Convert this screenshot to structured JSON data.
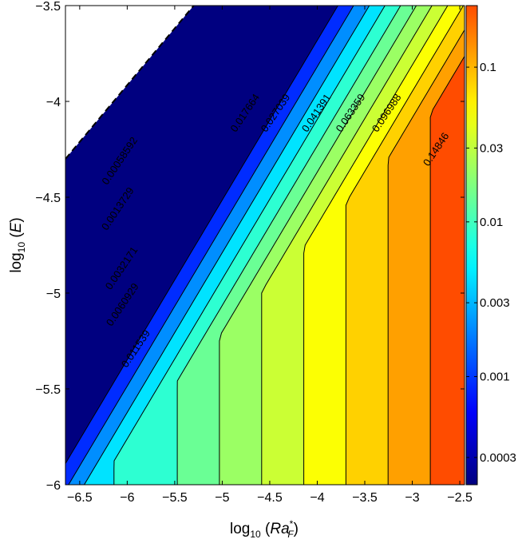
{
  "chart_data": {
    "type": "contour",
    "xlabel_base": "log",
    "xlabel_sub": "10",
    "xlabel_arg": "Ra",
    "xlabel_arg_sup": "*",
    "xlabel_arg_sub": "F",
    "ylabel_base": "log",
    "ylabel_sub": "10",
    "ylabel_arg": "E",
    "xlim": [
      -6.65,
      -2.45
    ],
    "ylim": [
      -6,
      -3.5
    ],
    "x_ticks": [
      -6.5,
      -6,
      -5.5,
      -5,
      -4.5,
      -4,
      -3.5,
      -3,
      -2.5
    ],
    "x_tick_labels": [
      "−6.5",
      "−6",
      "−5.5",
      "−5",
      "−4.5",
      "−4",
      "−3.5",
      "−3",
      "−2.5"
    ],
    "y_ticks": [
      -6,
      -5.5,
      -5,
      -4.5,
      -4,
      -3.5
    ],
    "y_tick_labels": [
      "−6",
      "−5.5",
      "−5",
      "−4.5",
      "−4",
      "−3.5"
    ],
    "colorbar": {
      "scale": "log",
      "range": [
        0.0002,
        0.25
      ],
      "ticks": [
        0.0003,
        0.001,
        0.003,
        0.01,
        0.03,
        0.1
      ],
      "tick_labels": [
        "0.0003",
        "0.001",
        "0.003",
        "0.01",
        "0.03",
        "0.1"
      ]
    },
    "valid_region_boundary": {
      "slope": 0.5,
      "intercept": -1.0,
      "style": "dashed"
    },
    "saturation_value": 0.2,
    "contour_levels": [
      0.00058592,
      0.0013729,
      0.0032171,
      0.0060929,
      0.011539,
      0.017664,
      0.027039,
      0.041391,
      0.063359,
      0.096988,
      0.14846
    ],
    "contour_labels": [
      {
        "text": "0.00058592",
        "x": -6.05,
        "y": -4.32
      },
      {
        "text": "0.0013729",
        "x": -6.07,
        "y": -4.57
      },
      {
        "text": "0.0032171",
        "x": -6.03,
        "y": -4.88
      },
      {
        "text": "0.0060929",
        "x": -6.02,
        "y": -5.07
      },
      {
        "text": "0.011539",
        "x": -5.88,
        "y": -5.3
      },
      {
        "text": "0.017664",
        "x": -4.73,
        "y": -4.07
      },
      {
        "text": "0.027039",
        "x": -4.41,
        "y": -4.07
      },
      {
        "text": "0.041391",
        "x": -3.98,
        "y": -4.07
      },
      {
        "text": "0.063359",
        "x": -3.62,
        "y": -4.07
      },
      {
        "text": "0.096988",
        "x": -3.24,
        "y": -4.07
      },
      {
        "text": "0.14846",
        "x": -2.72,
        "y": -4.26
      }
    ]
  }
}
